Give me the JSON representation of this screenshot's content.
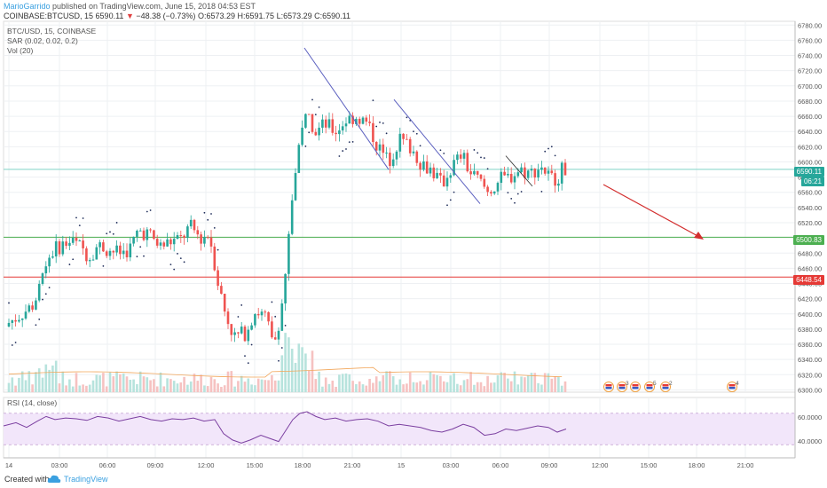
{
  "header": {
    "author": "MarioGarrido",
    "published_text": " published on TradingView.com, June 15, 2018 04:53 EST",
    "symbol": "COINBASE:BTCUSD, 15",
    "last": "6590.11",
    "change": "−48.38 (−0.73%)",
    "open": "O:6573.29",
    "high": "H:6591.75",
    "low": "L:6573.29",
    "close": "C:6590.11"
  },
  "legend": {
    "title": "BTC/USD, 15, COINBASE",
    "sar": "SAR (0.02, 0.02, 0.2)",
    "vol": "Vol (20)"
  },
  "rsi": {
    "label": "RSI (14, close)",
    "levels": [
      "60.0000",
      "40.0000"
    ]
  },
  "price_axis": {
    "ticks": [
      "6780.00",
      "6760.00",
      "6740.00",
      "6720.00",
      "6700.00",
      "6680.00",
      "6660.00",
      "6640.00",
      "6620.00",
      "6600.00",
      "6580.00",
      "6560.00",
      "6540.00",
      "6520.00",
      "6500.00",
      "6480.00",
      "6460.00",
      "6440.00",
      "6420.00",
      "6400.00",
      "6380.00",
      "6360.00",
      "6340.00",
      "6320.00",
      "6300.00"
    ],
    "tags": {
      "last": "6590.11",
      "countdown": "06:21",
      "support_green": "6500.83",
      "support_red": "6448.54"
    }
  },
  "time_axis": {
    "labels": [
      "14",
      "03:00",
      "06:00",
      "09:00",
      "12:00",
      "15:00",
      "18:00",
      "21:00",
      "15",
      "03:00",
      "06:00",
      "09:00",
      "12:00",
      "15:00",
      "18:00",
      "21:00"
    ]
  },
  "events": {
    "badges": [
      "3",
      "5",
      "2",
      "4"
    ]
  },
  "footer": {
    "created": "Created with",
    "brand": "TradingView"
  },
  "colors": {
    "up": "#26a69a",
    "down": "#ef5350",
    "sar": "#1f2d5a",
    "green_line": "#4caf50",
    "red_line": "#e53935",
    "rsi_line": "#7b3fa0",
    "rsi_band": "#f2e6fa",
    "trendline": "#5a5fbf",
    "projection": "#d32f2f"
  },
  "chart_data": {
    "type": "candlestick",
    "symbol": "COINBASE:BTCUSD",
    "timeframe": "15",
    "ylim": [
      6300,
      6790
    ],
    "horizontal_levels": [
      6500.83,
      6448.54
    ],
    "last_price": 6590.11,
    "ohlc_path": [
      [
        0,
        6380
      ],
      [
        12,
        6390
      ],
      [
        24,
        6400
      ],
      [
        36,
        6410
      ],
      [
        44,
        6430
      ],
      [
        50,
        6460
      ],
      [
        58,
        6480
      ],
      [
        68,
        6490
      ],
      [
        80,
        6495
      ],
      [
        92,
        6488
      ],
      [
        100,
        6475
      ],
      [
        110,
        6490
      ],
      [
        122,
        6485
      ],
      [
        134,
        6480
      ],
      [
        146,
        6485
      ],
      [
        156,
        6510
      ],
      [
        168,
        6505
      ],
      [
        180,
        6488
      ],
      [
        192,
        6495
      ],
      [
        204,
        6498
      ],
      [
        214,
        6515
      ],
      [
        226,
        6500
      ],
      [
        236,
        6505
      ],
      [
        246,
        6440
      ],
      [
        254,
        6400
      ],
      [
        264,
        6370
      ],
      [
        276,
        6375
      ],
      [
        288,
        6405
      ],
      [
        300,
        6395
      ],
      [
        308,
        6355
      ],
      [
        316,
        6400
      ],
      [
        322,
        6450
      ],
      [
        326,
        6520
      ],
      [
        332,
        6580
      ],
      [
        340,
        6650
      ],
      [
        348,
        6660
      ],
      [
        356,
        6640
      ],
      [
        366,
        6650
      ],
      [
        378,
        6640
      ],
      [
        390,
        6655
      ],
      [
        402,
        6660
      ],
      [
        414,
        6650
      ],
      [
        426,
        6620
      ],
      [
        438,
        6600
      ],
      [
        450,
        6630
      ],
      [
        462,
        6620
      ],
      [
        474,
        6600
      ],
      [
        486,
        6590
      ],
      [
        498,
        6570
      ],
      [
        510,
        6595
      ],
      [
        520,
        6610
      ],
      [
        530,
        6585
      ],
      [
        540,
        6575
      ],
      [
        550,
        6560
      ],
      [
        562,
        6575
      ],
      [
        574,
        6580
      ],
      [
        586,
        6590
      ],
      [
        598,
        6585
      ],
      [
        610,
        6595
      ],
      [
        620,
        6578
      ],
      [
        628,
        6580
      ],
      [
        634,
        6590
      ]
    ],
    "rsi": [
      [
        0,
        54
      ],
      [
        14,
        58
      ],
      [
        26,
        52
      ],
      [
        38,
        60
      ],
      [
        48,
        66
      ],
      [
        58,
        62
      ],
      [
        70,
        64
      ],
      [
        82,
        63
      ],
      [
        94,
        61
      ],
      [
        106,
        66
      ],
      [
        118,
        64
      ],
      [
        130,
        60
      ],
      [
        142,
        63
      ],
      [
        154,
        66
      ],
      [
        166,
        62
      ],
      [
        178,
        60
      ],
      [
        190,
        63
      ],
      [
        202,
        62
      ],
      [
        214,
        64
      ],
      [
        226,
        60
      ],
      [
        238,
        62
      ],
      [
        248,
        44
      ],
      [
        258,
        36
      ],
      [
        268,
        32
      ],
      [
        278,
        36
      ],
      [
        290,
        42
      ],
      [
        300,
        38
      ],
      [
        310,
        34
      ],
      [
        318,
        48
      ],
      [
        326,
        62
      ],
      [
        334,
        70
      ],
      [
        342,
        72
      ],
      [
        352,
        66
      ],
      [
        362,
        62
      ],
      [
        374,
        64
      ],
      [
        386,
        60
      ],
      [
        398,
        62
      ],
      [
        410,
        63
      ],
      [
        422,
        60
      ],
      [
        434,
        54
      ],
      [
        446,
        56
      ],
      [
        458,
        54
      ],
      [
        470,
        52
      ],
      [
        482,
        48
      ],
      [
        494,
        46
      ],
      [
        506,
        50
      ],
      [
        518,
        56
      ],
      [
        530,
        52
      ],
      [
        542,
        42
      ],
      [
        554,
        44
      ],
      [
        566,
        50
      ],
      [
        578,
        48
      ],
      [
        590,
        51
      ],
      [
        602,
        54
      ],
      [
        614,
        52
      ],
      [
        624,
        46
      ],
      [
        634,
        50
      ]
    ]
  }
}
